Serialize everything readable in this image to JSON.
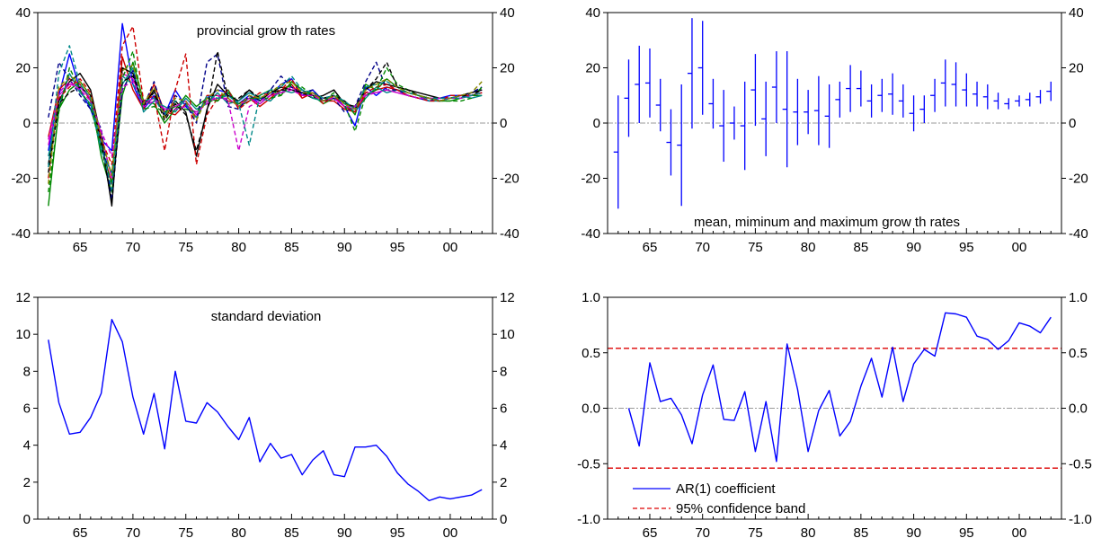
{
  "chart_data": [
    {
      "id": "growth",
      "type": "line",
      "title": "provincial grow th rates",
      "xlim": [
        1961,
        2004
      ],
      "ylim": [
        -40,
        40
      ],
      "yticks": [
        -40,
        -20,
        0,
        20,
        40
      ],
      "ytick_labels": [
        "-40",
        "-20",
        "0",
        "20",
        "40"
      ],
      "xticks": [
        1965,
        1970,
        1975,
        1980,
        1985,
        1990,
        1995,
        2000
      ],
      "xtick_labels": [
        "65",
        "70",
        "75",
        "80",
        "85",
        "90",
        "95",
        "00"
      ],
      "zero_line": true,
      "x_start": 1962,
      "series": [
        {
          "color": "#0000ff",
          "dash": false,
          "values": [
            -10,
            10,
            25,
            12,
            5,
            -6,
            -10,
            36,
            14,
            5,
            10,
            3,
            12,
            6,
            2,
            9,
            12,
            11,
            7,
            10,
            7,
            10,
            14,
            16,
            10,
            12,
            8,
            10,
            6,
            -1,
            13,
            10,
            13,
            12,
            10,
            9,
            8,
            9,
            10,
            10,
            11,
            12
          ]
        },
        {
          "color": "#cc0000",
          "dash": false,
          "values": [
            -5,
            12,
            16,
            14,
            8,
            -8,
            -22,
            24,
            12,
            5,
            14,
            4,
            3,
            7,
            2,
            10,
            10,
            8,
            7,
            9,
            6,
            9,
            12,
            14,
            9,
            11,
            8,
            8,
            5,
            4,
            10,
            12,
            13,
            12,
            11,
            10,
            9,
            8,
            9,
            9,
            10,
            11
          ]
        },
        {
          "color": "#008800",
          "dash": false,
          "values": [
            -30,
            5,
            12,
            15,
            10,
            -12,
            -25,
            10,
            22,
            8,
            7,
            0,
            5,
            10,
            6,
            9,
            8,
            12,
            6,
            8,
            10,
            12,
            10,
            15,
            12,
            10,
            7,
            9,
            8,
            3,
            14,
            12,
            16,
            13,
            11,
            10,
            9,
            8,
            8,
            9,
            10,
            10
          ]
        },
        {
          "color": "#000000",
          "dash": false,
          "values": [
            -15,
            8,
            15,
            18,
            12,
            -5,
            -30,
            20,
            18,
            6,
            12,
            2,
            8,
            4,
            -12,
            5,
            14,
            10,
            8,
            12,
            8,
            11,
            13,
            12,
            11,
            9,
            10,
            12,
            7,
            6,
            12,
            15,
            14,
            13,
            12,
            11,
            10,
            9,
            9,
            10,
            11,
            12
          ]
        },
        {
          "color": "#cc00cc",
          "dash": false,
          "values": [
            -8,
            10,
            14,
            13,
            9,
            -4,
            -20,
            18,
            16,
            7,
            9,
            5,
            6,
            8,
            3,
            8,
            9,
            9,
            6,
            9,
            7,
            10,
            11,
            13,
            10,
            10,
            9,
            9,
            6,
            5,
            11,
            11,
            12,
            11,
            10,
            9,
            9,
            9,
            9,
            9,
            10,
            11
          ]
        },
        {
          "color": "#008888",
          "dash": false,
          "values": [
            -12,
            6,
            18,
            11,
            7,
            -10,
            -18,
            14,
            20,
            4,
            8,
            6,
            4,
            9,
            5,
            7,
            11,
            7,
            8,
            11,
            9,
            8,
            12,
            11,
            12,
            9,
            8,
            10,
            7,
            4,
            9,
            13,
            11,
            12,
            11,
            10,
            8,
            8,
            9,
            10,
            9,
            10
          ]
        },
        {
          "color": "#000088",
          "dash": true,
          "values": [
            2,
            22,
            16,
            10,
            5,
            -2,
            -28,
            12,
            19,
            6,
            15,
            3,
            10,
            7,
            0,
            22,
            25,
            6,
            5,
            10,
            8,
            12,
            17,
            13,
            11,
            12,
            8,
            9,
            4,
            6,
            15,
            22,
            12,
            12,
            10,
            9,
            9,
            8,
            9,
            9,
            11,
            13
          ]
        },
        {
          "color": "#cc0000",
          "dash": true,
          "values": [
            -20,
            9,
            13,
            16,
            11,
            -6,
            -15,
            28,
            35,
            8,
            10,
            -10,
            12,
            25,
            -15,
            3,
            9,
            12,
            5,
            8,
            11,
            10,
            12,
            16,
            9,
            11,
            7,
            10,
            6,
            4,
            11,
            13,
            14,
            12,
            10,
            9,
            8,
            8,
            10,
            10,
            10,
            11
          ]
        },
        {
          "color": "#008800",
          "dash": true,
          "values": [
            -25,
            4,
            20,
            12,
            6,
            -9,
            -22,
            16,
            26,
            5,
            6,
            4,
            6,
            5,
            4,
            8,
            8,
            11,
            7,
            9,
            9,
            9,
            10,
            14,
            13,
            10,
            8,
            11,
            7,
            -3,
            10,
            12,
            20,
            14,
            12,
            10,
            9,
            8,
            8,
            8,
            9,
            13
          ]
        },
        {
          "color": "#000000",
          "dash": true,
          "values": [
            -18,
            7,
            11,
            13,
            10,
            -7,
            -29,
            15,
            17,
            7,
            11,
            1,
            7,
            3,
            -10,
            4,
            26,
            9,
            9,
            12,
            9,
            11,
            12,
            12,
            11,
            10,
            9,
            10,
            8,
            5,
            12,
            16,
            22,
            13,
            12,
            10,
            9,
            9,
            9,
            10,
            10,
            12
          ]
        },
        {
          "color": "#cc00cc",
          "dash": true,
          "values": [
            -6,
            11,
            15,
            12,
            8,
            -3,
            -12,
            13,
            15,
            6,
            8,
            5,
            5,
            6,
            4,
            7,
            10,
            8,
            -10,
            6,
            8,
            10,
            11,
            12,
            10,
            10,
            8,
            9,
            6,
            6,
            10,
            11,
            12,
            11,
            10,
            9,
            9,
            8,
            9,
            9,
            10,
            11
          ]
        },
        {
          "color": "#008888",
          "dash": true,
          "values": [
            -16,
            18,
            28,
            14,
            9,
            -8,
            -24,
            17,
            14,
            8,
            9,
            3,
            8,
            7,
            2,
            10,
            9,
            10,
            7,
            -8,
            10,
            12,
            13,
            17,
            12,
            11,
            9,
            10,
            8,
            5,
            13,
            14,
            15,
            13,
            11,
            10,
            9,
            9,
            9,
            9,
            10,
            11
          ]
        },
        {
          "color": "#888800",
          "dash": true,
          "values": [
            -22,
            13,
            17,
            15,
            10,
            -5,
            -19,
            19,
            21,
            7,
            13,
            2,
            9,
            8,
            1,
            9,
            12,
            9,
            6,
            10,
            9,
            11,
            14,
            15,
            11,
            11,
            8,
            10,
            7,
            5,
            12,
            14,
            16,
            13,
            11,
            10,
            9,
            8,
            9,
            10,
            11,
            15
          ]
        }
      ]
    },
    {
      "id": "minmax",
      "type": "range",
      "title": "mean, miminum and maximum grow th rates",
      "xlim": [
        1961,
        2004
      ],
      "ylim": [
        -40,
        40
      ],
      "yticks": [
        -40,
        -20,
        0,
        20,
        40
      ],
      "ytick_labels": [
        "-40",
        "-20",
        "0",
        "20",
        "40"
      ],
      "xticks": [
        1965,
        1970,
        1975,
        1980,
        1985,
        1990,
        1995,
        2000
      ],
      "xtick_labels": [
        "65",
        "70",
        "75",
        "80",
        "85",
        "90",
        "95",
        "00"
      ],
      "zero_line": true,
      "color": "#0000ff",
      "x": [
        1962,
        1963,
        1964,
        1965,
        1966,
        1967,
        1968,
        1969,
        1970,
        1971,
        1972,
        1973,
        1974,
        1975,
        1976,
        1977,
        1978,
        1979,
        1980,
        1981,
        1982,
        1983,
        1984,
        1985,
        1986,
        1987,
        1988,
        1989,
        1990,
        1991,
        1992,
        1993,
        1994,
        1995,
        1996,
        1997,
        1998,
        1999,
        2000,
        2001,
        2002,
        2003
      ],
      "min": [
        -31,
        -5,
        0,
        2,
        -3,
        -19,
        -30,
        -2,
        3,
        -2,
        -14,
        -6,
        -17,
        -1,
        -12,
        0,
        -16,
        -8,
        -4,
        -8,
        -9,
        2,
        4,
        6,
        2,
        4,
        3,
        2,
        -3,
        0,
        4,
        6,
        6,
        6,
        6,
        5,
        5,
        5,
        6,
        6,
        7,
        8
      ],
      "max": [
        10,
        23,
        28,
        27,
        16,
        5,
        14,
        38,
        37,
        16,
        12,
        6,
        15,
        25,
        15,
        26,
        26,
        16,
        12,
        17,
        14,
        15,
        21,
        19,
        14,
        16,
        18,
        14,
        10,
        10,
        16,
        23,
        22,
        18,
        15,
        14,
        11,
        9,
        10,
        11,
        12,
        15
      ]
    },
    {
      "id": "std",
      "type": "line",
      "title": "standard deviation",
      "xlim": [
        1961,
        2004
      ],
      "ylim": [
        0,
        12
      ],
      "yticks": [
        0,
        2,
        4,
        6,
        8,
        10,
        12
      ],
      "ytick_labels": [
        "0",
        "2",
        "4",
        "6",
        "8",
        "10",
        "12"
      ],
      "xticks": [
        1965,
        1970,
        1975,
        1980,
        1985,
        1990,
        1995,
        2000
      ],
      "xtick_labels": [
        "65",
        "70",
        "75",
        "80",
        "85",
        "90",
        "95",
        "00"
      ],
      "zero_line": false,
      "x_start": 1962,
      "series": [
        {
          "color": "#0000ff",
          "dash": false,
          "values": [
            9.7,
            6.3,
            4.6,
            4.7,
            5.5,
            6.8,
            10.8,
            9.6,
            6.6,
            4.6,
            6.8,
            3.8,
            8.0,
            5.3,
            5.2,
            6.3,
            5.8,
            5.0,
            4.3,
            5.5,
            3.1,
            4.1,
            3.3,
            3.5,
            2.4,
            3.2,
            3.7,
            2.4,
            2.3,
            3.9,
            3.9,
            4.0,
            3.4,
            2.5,
            1.9,
            1.5,
            1.0,
            1.2,
            1.1,
            1.2,
            1.3,
            1.6
          ]
        }
      ]
    },
    {
      "id": "ar1",
      "type": "line",
      "title": "",
      "xlim": [
        1961,
        2004
      ],
      "ylim": [
        -1.0,
        1.0
      ],
      "yticks": [
        -1.0,
        -0.5,
        0.0,
        0.5,
        1.0
      ],
      "ytick_labels": [
        "-1.0",
        "-0.5",
        "0.0",
        "0.5",
        "1.0"
      ],
      "xticks": [
        1965,
        1970,
        1975,
        1980,
        1985,
        1990,
        1995,
        2000
      ],
      "xtick_labels": [
        "65",
        "70",
        "75",
        "80",
        "85",
        "90",
        "95",
        "00"
      ],
      "zero_line": true,
      "x_start": 1963,
      "series": [
        {
          "name": "AR(1) coefficient",
          "color": "#0000ff",
          "dash": false,
          "values": [
            0.0,
            -0.34,
            0.41,
            0.06,
            0.09,
            -0.06,
            -0.32,
            0.12,
            0.39,
            -0.1,
            -0.11,
            0.15,
            -0.39,
            0.06,
            -0.48,
            0.58,
            0.17,
            -0.39,
            -0.02,
            0.16,
            -0.25,
            -0.12,
            0.2,
            0.45,
            0.1,
            0.55,
            0.06,
            0.4,
            0.53,
            0.47,
            0.86,
            0.85,
            0.82,
            0.65,
            0.62,
            0.53,
            0.61,
            0.77,
            0.74,
            0.68,
            0.82
          ]
        }
      ],
      "bands": [
        {
          "name": "95% confidence band",
          "color": "#dd0000",
          "value": 0.54
        },
        {
          "name": "95% confidence band",
          "color": "#dd0000",
          "value": -0.54
        }
      ],
      "legend": [
        "AR(1) coefficient",
        "95% confidence band"
      ],
      "legend_position": "bottom-left"
    }
  ]
}
